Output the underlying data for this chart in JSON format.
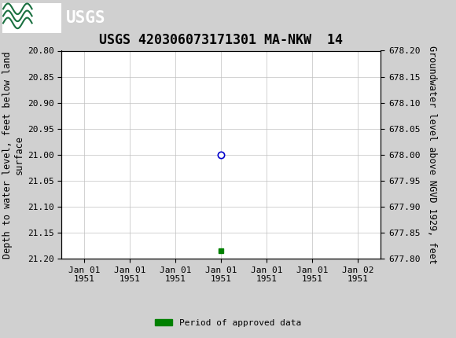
{
  "title": "USGS 420306073171301 MA-NKW  14",
  "header_bg_color": "#1a7040",
  "plot_bg_color": "#ffffff",
  "outer_bg_color": "#d0d0d0",
  "left_ylabel": "Depth to water level, feet below land\nsurface",
  "right_ylabel": "Groundwater level above NGVD 1929, feet",
  "ylim_left": [
    20.8,
    21.2
  ],
  "ylim_right": [
    677.8,
    678.2
  ],
  "yticks_left": [
    20.8,
    20.85,
    20.9,
    20.95,
    21.0,
    21.05,
    21.1,
    21.15,
    21.2
  ],
  "yticks_right": [
    677.8,
    677.85,
    677.9,
    677.95,
    678.0,
    678.05,
    678.1,
    678.15,
    678.2
  ],
  "data_point_depth": 21.0,
  "data_point_color": "#0000cc",
  "approved_bar_depth": 21.185,
  "approved_bar_color": "#008000",
  "legend_label": "Period of approved data",
  "font_family": "monospace",
  "title_fontsize": 12,
  "axis_label_fontsize": 8.5,
  "tick_fontsize": 8,
  "grid_color": "#c0c0c0",
  "xtick_labels": [
    "Jan 01\n1951",
    "Jan 01\n1951",
    "Jan 01\n1951",
    "Jan 01\n1951",
    "Jan 01\n1951",
    "Jan 01\n1951",
    "Jan 02\n1951"
  ]
}
